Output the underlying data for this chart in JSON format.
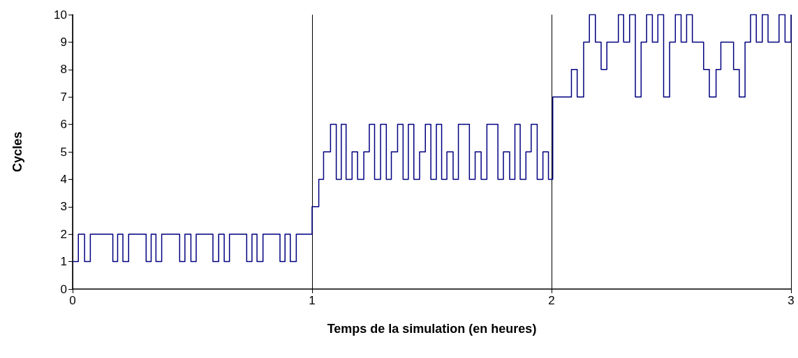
{
  "chart_data": {
    "type": "step",
    "xlabel": "Temps de la simulation (en heures)",
    "ylabel": "Cycles",
    "x": [
      0,
      0.024,
      0.05,
      0.074,
      0.168,
      0.188,
      0.21,
      0.234,
      0.307,
      0.328,
      0.348,
      0.372,
      0.447,
      0.469,
      0.494,
      0.516,
      0.586,
      0.61,
      0.633,
      0.655,
      0.727,
      0.749,
      0.77,
      0.795,
      0.866,
      0.887,
      0.909,
      0.934,
      1.0,
      1.028,
      1.048,
      1.077,
      1.101,
      1.122,
      1.142,
      1.167,
      1.19,
      1.216,
      1.239,
      1.261,
      1.286,
      1.31,
      1.331,
      1.357,
      1.38,
      1.402,
      1.425,
      1.449,
      1.473,
      1.496,
      1.519,
      1.541,
      1.563,
      1.589,
      1.611,
      1.657,
      1.681,
      1.706,
      1.73,
      1.776,
      1.799,
      1.825,
      1.847,
      1.869,
      1.893,
      1.915,
      1.94,
      1.964,
      1.987,
      2.005,
      2.083,
      2.107,
      2.134,
      2.158,
      2.183,
      2.207,
      2.231,
      2.279,
      2.301,
      2.326,
      2.35,
      2.374,
      2.397,
      2.421,
      2.444,
      2.468,
      2.493,
      2.517,
      2.541,
      2.564,
      2.588,
      2.635,
      2.659,
      2.687,
      2.707,
      2.76,
      2.784,
      2.808,
      2.831,
      2.855,
      2.88,
      2.904,
      2.95,
      2.975,
      3.0
    ],
    "series": [
      {
        "color": "#000080",
        "values": [
          1,
          2,
          1,
          2,
          1,
          2,
          1,
          2,
          1,
          2,
          1,
          2,
          1,
          2,
          1,
          2,
          1,
          2,
          1,
          2,
          1,
          2,
          1,
          2,
          1,
          2,
          1,
          2,
          3,
          4,
          5,
          6,
          4,
          6,
          4,
          5,
          4,
          5,
          6,
          4,
          6,
          4,
          5,
          6,
          4,
          6,
          4,
          5,
          6,
          4,
          6,
          4,
          5,
          4,
          6,
          4,
          5,
          4,
          6,
          4,
          5,
          4,
          6,
          4,
          5,
          6,
          4,
          5,
          4,
          7,
          8,
          7,
          9,
          10,
          9,
          8,
          9,
          10,
          9,
          10,
          7,
          9,
          10,
          9,
          10,
          7,
          9,
          10,
          9,
          10,
          9,
          8,
          7,
          8,
          9,
          8,
          7,
          9,
          10,
          9,
          10,
          9,
          10,
          9,
          10
        ]
      }
    ],
    "xlim": [
      0,
      3
    ],
    "xticks": [
      0,
      1,
      2,
      3
    ],
    "ylim": [
      0,
      10
    ],
    "yticks": [
      0,
      1,
      2,
      3,
      4,
      5,
      6,
      7,
      8,
      9,
      10
    ],
    "grid": "x",
    "marker": "none",
    "line_style": "solid"
  }
}
